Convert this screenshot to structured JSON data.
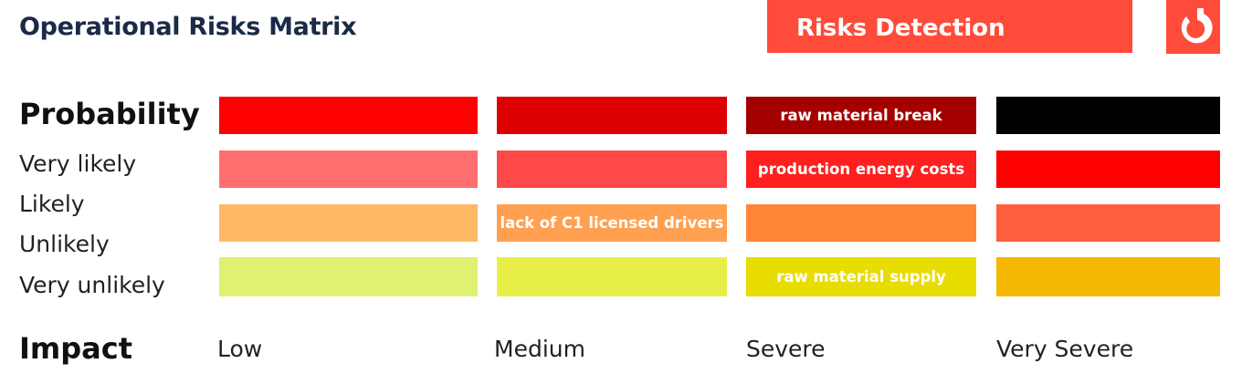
{
  "header": {
    "title": "Operational Risks Matrix",
    "badge": "Risks Detection",
    "logo_icon": "brand-logo-icon"
  },
  "matrix": {
    "probability_label": "Probability",
    "impact_label": "Impact",
    "probability_levels": [
      "Very likely",
      "Likely",
      "Unlikely",
      "Very unlikely"
    ],
    "impact_levels": [
      "Low",
      "Medium",
      "Severe",
      "Very Severe"
    ],
    "rows": [
      {
        "colors": [
          "#ff0000",
          "#dd0000",
          "#a50000",
          "#000000"
        ],
        "labels": [
          "",
          "",
          "raw material break",
          ""
        ]
      },
      {
        "colors": [
          "#ff6f6f",
          "#ff4848",
          "#ff1f1f",
          "#ff0000"
        ],
        "labels": [
          "",
          "",
          "production energy costs",
          ""
        ]
      },
      {
        "colors": [
          "#ffb866",
          "#ffa050",
          "#ff8636",
          "#ff5f3e"
        ],
        "labels": [
          "",
          "lack of C1 licensed drivers",
          "",
          ""
        ]
      },
      {
        "colors": [
          "#e0f070",
          "#e8ee48",
          "#e8dc00",
          "#f5b800"
        ],
        "labels": [
          "",
          "",
          "raw material supply",
          ""
        ]
      }
    ]
  },
  "brand_color": "#ff4b3a"
}
